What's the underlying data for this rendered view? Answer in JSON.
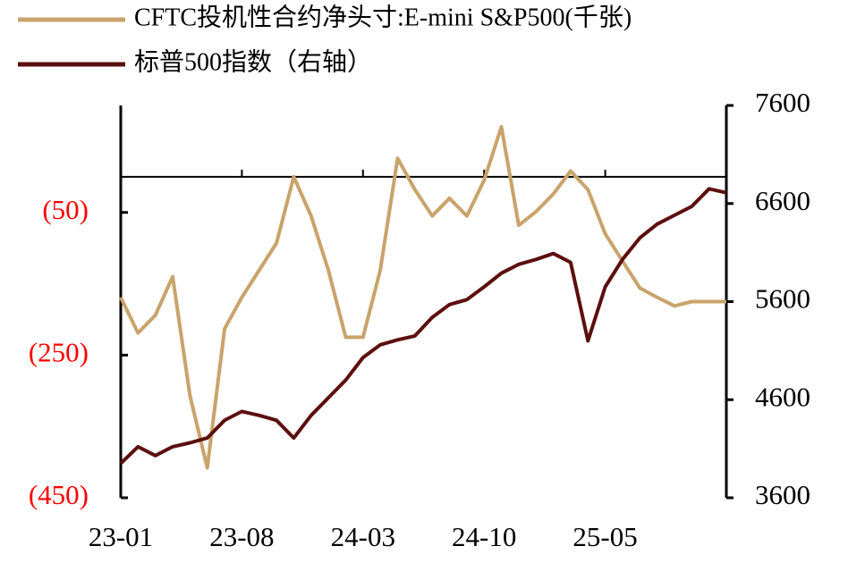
{
  "chart_data": {
    "type": "line",
    "categories": [
      "23-01",
      null,
      null,
      null,
      null,
      null,
      null,
      "23-08",
      null,
      null,
      null,
      null,
      null,
      null,
      "24-03",
      null,
      null,
      null,
      null,
      null,
      null,
      "24-10",
      null,
      null,
      null,
      null,
      null,
      null,
      "25-05",
      null,
      null,
      null,
      null,
      null,
      null,
      null
    ],
    "series": [
      {
        "name": "CFTC投机性合约净头寸:E-mini  S&P500(千张)",
        "color": "#c9a36b",
        "values": [
          -169,
          -219,
          -194,
          -140,
          -307,
          -408,
          -213,
          -169,
          -131,
          -93,
          0,
          -55,
          -131,
          -225,
          -225,
          -131,
          26,
          -18,
          -55,
          -30,
          -55,
          -5,
          70,
          -68,
          -49,
          -24,
          8,
          -18,
          -80,
          -118,
          -156,
          -169,
          -181,
          -175,
          -175,
          -175
        ]
      },
      {
        "name": "标普500指数（右轴）",
        "color": "#5c0f0f",
        "axis": "y2",
        "values": [
          3950,
          4120,
          4030,
          4120,
          4160,
          4210,
          4390,
          4480,
          4440,
          4390,
          4210,
          4440,
          4620,
          4800,
          5030,
          5160,
          5210,
          5250,
          5440,
          5570,
          5620,
          5750,
          5890,
          5980,
          6030,
          6090,
          6000,
          5200,
          5750,
          6030,
          6250,
          6390,
          6480,
          6570,
          6750,
          6710
        ]
      }
    ],
    "ylim": [
      -450,
      100
    ],
    "yticks": [
      {
        "value": -50,
        "label": "(50)"
      },
      {
        "value": -250,
        "label": "(250)"
      },
      {
        "value": -450,
        "label": "(450)"
      }
    ],
    "ytick_color": "#ff0000",
    "y2lim": [
      3600,
      7600
    ],
    "y2ticks": [
      3600,
      4600,
      5600,
      6600,
      7600
    ]
  }
}
